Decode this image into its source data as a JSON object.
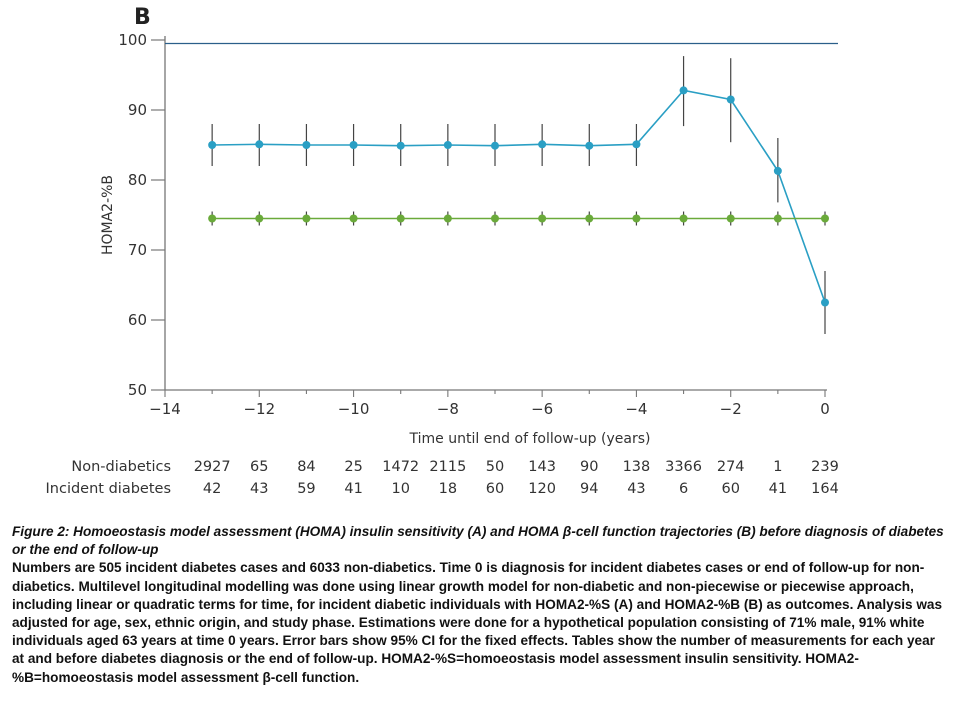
{
  "chart_data": {
    "type": "line",
    "panel_label": "B",
    "xlabel": "Time until end of follow-up (years)",
    "ylabel": "HOMA2-%B",
    "xlim": [
      -14,
      0
    ],
    "ylim": [
      50,
      100
    ],
    "xticks": [
      "−14",
      "−12",
      "−10",
      "−8",
      "−6",
      "−4",
      "−2",
      "0"
    ],
    "yticks": [
      "50",
      "60",
      "70",
      "80",
      "90",
      "100"
    ],
    "reference_line_y": 99.5,
    "x": [
      -13,
      -12,
      -11,
      -10,
      -9,
      -8,
      -7,
      -6,
      -5,
      -4,
      -3,
      -2,
      -1,
      0
    ],
    "series": [
      {
        "color": "#2a9fc4",
        "values": [
          85.0,
          85.1,
          85.0,
          85.0,
          84.9,
          85.0,
          84.9,
          85.1,
          84.9,
          85.1,
          92.8,
          91.5,
          81.3,
          62.5
        ],
        "ci_low": [
          82.0,
          82.0,
          82.0,
          82.0,
          82.0,
          82.0,
          82.0,
          82.0,
          82.0,
          82.0,
          87.7,
          85.4,
          76.8,
          58.0
        ],
        "ci_high": [
          88.0,
          88.0,
          88.0,
          88.0,
          88.0,
          88.0,
          88.0,
          88.0,
          88.0,
          88.0,
          97.7,
          97.4,
          86.0,
          67.0
        ]
      },
      {
        "color": "#6aaa3a",
        "values": [
          74.5,
          74.5,
          74.5,
          74.5,
          74.5,
          74.5,
          74.5,
          74.5,
          74.5,
          74.5,
          74.5,
          74.5,
          74.5,
          74.5
        ],
        "ci_low": [
          73.5,
          73.5,
          73.5,
          73.5,
          73.5,
          73.5,
          73.5,
          73.5,
          73.5,
          73.5,
          73.5,
          73.5,
          73.5,
          73.5
        ],
        "ci_high": [
          75.5,
          75.5,
          75.5,
          75.5,
          75.5,
          75.5,
          75.5,
          75.5,
          75.5,
          75.5,
          75.5,
          75.5,
          75.5,
          75.5
        ]
      }
    ],
    "table": {
      "rows": [
        {
          "label": "Non-diabetics",
          "counts": [
            "2927",
            "65",
            "84",
            "25",
            "1472",
            "2115",
            "50",
            "143",
            "90",
            "138",
            "3366",
            "274",
            "1",
            "239"
          ]
        },
        {
          "label": "Incident diabetes",
          "counts": [
            "42",
            "43",
            "59",
            "41",
            "10",
            "18",
            "60",
            "120",
            "94",
            "43",
            "6",
            "60",
            "41",
            "164"
          ]
        }
      ]
    }
  },
  "caption": {
    "title": "Figure 2: Homoeostasis model assessment (HOMA) insulin sensitivity (A) and HOMA β-cell function trajectories (B) before diagnosis of diabetes or the end of follow-up",
    "body": "Numbers are 505 incident diabetes cases and 6033 non-diabetics. Time 0 is diagnosis for incident diabetes cases or end of follow-up for non-diabetics. Multilevel longitudinal modelling was done using linear growth model for non-diabetic and non-piecewise or piecewise approach, including linear or quadratic terms for time, for incident diabetic individuals with HOMA2-%S (A) and HOMA2-%B (B) as outcomes. Analysis was adjusted for age, sex, ethnic origin, and study phase. Estimations were done for a hypothetical population consisting of 71% male, 91% white individuals aged 63 years at time 0 years. Error bars show 95% CI for the fixed effects. Tables show the number of measurements for each year at and before diabetes diagnosis or the end of follow-up. HOMA2-%S=homoeostasis model assessment insulin sensitivity. HOMA2-%B=homoeostasis model assessment β-cell function."
  }
}
